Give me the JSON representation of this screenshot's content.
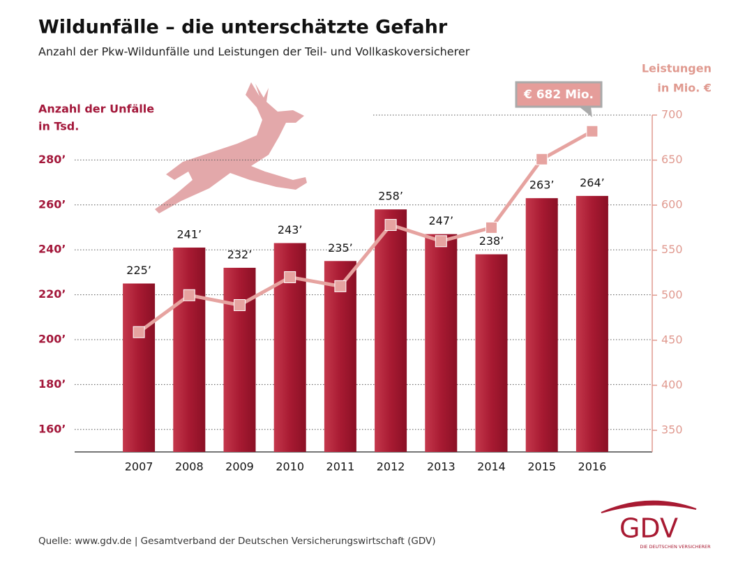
{
  "chart_data": {
    "type": "bar",
    "title": "Wildunfälle – die unterschätzte Gefahr",
    "subtitle": "Anzahl der Pkw-Wildunfälle und Leistungen der Teil- und Vollkaskoversicherer",
    "y_label": [
      "Anzahl der Unfälle",
      "in Tsd."
    ],
    "y2_label": [
      "Leistungen",
      "in Mio. €"
    ],
    "categories": [
      "2007",
      "2008",
      "2009",
      "2010",
      "2011",
      "2012",
      "2013",
      "2014",
      "2015",
      "2016"
    ],
    "series": [
      {
        "name": "Anzahl der Unfälle",
        "color": "#a81a32",
        "values": [
          225,
          241,
          232,
          243,
          235,
          258,
          247,
          238,
          263,
          264
        ],
        "value_labels": [
          "225’",
          "241’",
          "232’",
          "243’",
          "235’",
          "258’",
          "247’",
          "238’",
          "263’",
          "264’"
        ]
      },
      {
        "name": "Leistungen",
        "color": "#e6a3a0",
        "axis": "y2",
        "type": "line",
        "values": [
          459,
          500,
          489,
          520,
          510,
          578,
          560,
          575,
          651,
          682
        ]
      }
    ],
    "annotation": "€ 682 Mio.",
    "ylim": [
      150,
      300
    ],
    "yticks": [
      {
        "value": 160,
        "label": "160’"
      },
      {
        "value": 180,
        "label": "180’"
      },
      {
        "value": 200,
        "label": "200’"
      },
      {
        "value": 220,
        "label": "220’"
      },
      {
        "value": 240,
        "label": "240’"
      },
      {
        "value": 260,
        "label": "260’"
      },
      {
        "value": 280,
        "label": "280’"
      }
    ],
    "y2lim": [
      326,
      700
    ],
    "y2ticks": [
      350,
      400,
      450,
      500,
      550,
      600,
      650,
      700
    ],
    "grid": true,
    "source": "Quelle: www.gdv.de | Gesamtverband der Deutschen Versicherungswirtschaft (GDV)",
    "logo": {
      "name": "GDV",
      "tagline": "DIE DEUTSCHEN VERSICHERER"
    }
  }
}
